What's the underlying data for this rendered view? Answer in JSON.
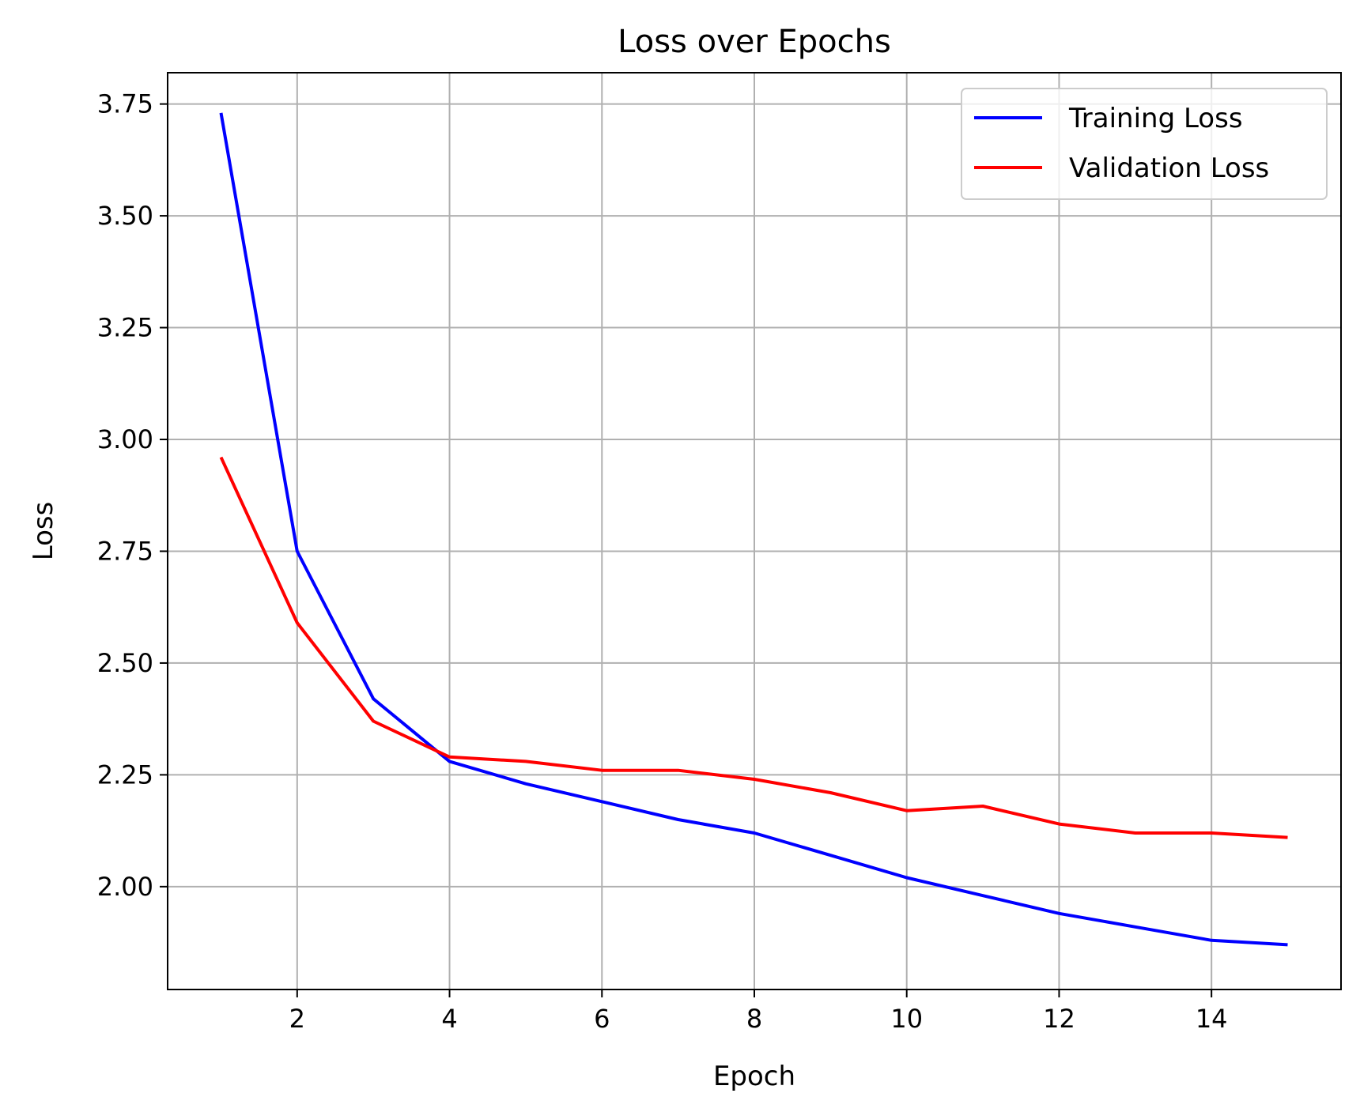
{
  "chart_data": {
    "type": "line",
    "title": "Loss over Epochs",
    "xlabel": "Epoch",
    "ylabel": "Loss",
    "xlim": [
      0.3,
      15.7
    ],
    "ylim": [
      1.77,
      3.82
    ],
    "xticks": [
      2,
      4,
      6,
      8,
      10,
      12,
      14
    ],
    "xtick_labels": [
      "2",
      "4",
      "6",
      "8",
      "10",
      "12",
      "14"
    ],
    "yticks": [
      2.0,
      2.25,
      2.5,
      2.75,
      3.0,
      3.25,
      3.5,
      3.75
    ],
    "ytick_labels": [
      "2.00",
      "2.25",
      "2.50",
      "2.75",
      "3.00",
      "3.25",
      "3.50",
      "3.75"
    ],
    "grid": true,
    "legend_position": "top-right",
    "x": [
      1,
      2,
      3,
      4,
      5,
      6,
      7,
      8,
      9,
      10,
      11,
      12,
      13,
      14,
      15
    ],
    "series": [
      {
        "name": "Training Loss",
        "color": "#0000ff",
        "values": [
          3.73,
          2.75,
          2.42,
          2.28,
          2.23,
          2.19,
          2.15,
          2.12,
          2.07,
          2.02,
          1.98,
          1.94,
          1.91,
          1.88,
          1.87
        ]
      },
      {
        "name": "Validation Loss",
        "color": "#ff0000",
        "values": [
          2.96,
          2.59,
          2.37,
          2.29,
          2.28,
          2.26,
          2.26,
          2.24,
          2.21,
          2.17,
          2.18,
          2.14,
          2.12,
          2.12,
          2.11
        ]
      }
    ]
  }
}
